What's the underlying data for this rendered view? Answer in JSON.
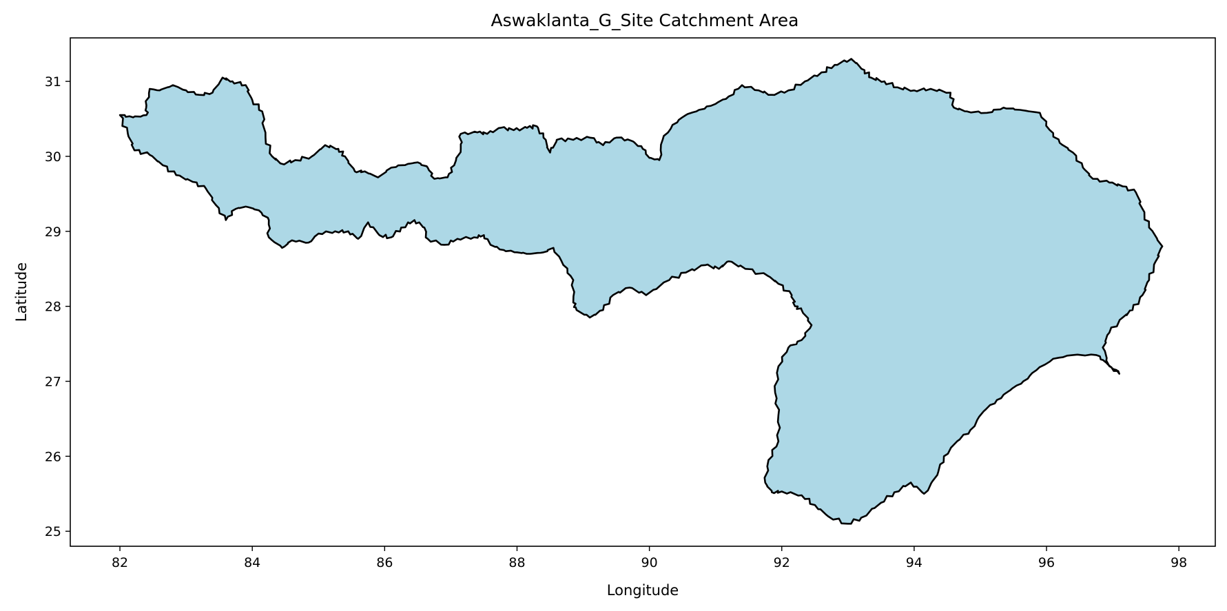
{
  "chart_data": {
    "type": "map",
    "title": "Aswaklanta_G_Site Catchment Area",
    "xlabel": "Longitude",
    "ylabel": "Latitude",
    "xlim": [
      81.25,
      98.55
    ],
    "ylim": [
      24.8,
      31.58
    ],
    "xticks": [
      82,
      84,
      86,
      88,
      90,
      92,
      94,
      96,
      98
    ],
    "yticks": [
      25,
      26,
      27,
      28,
      29,
      30,
      31
    ],
    "grid": false,
    "fill_color": "#add8e6",
    "edge_color": "#000000",
    "polygon": [
      [
        82.0,
        30.55
      ],
      [
        82.12,
        30.3
      ],
      [
        82.22,
        30.08
      ],
      [
        82.45,
        30.02
      ],
      [
        82.65,
        29.88
      ],
      [
        82.85,
        29.75
      ],
      [
        83.1,
        29.66
      ],
      [
        83.3,
        29.57
      ],
      [
        83.45,
        29.35
      ],
      [
        83.6,
        29.15
      ],
      [
        83.75,
        29.3
      ],
      [
        83.9,
        29.33
      ],
      [
        84.1,
        29.28
      ],
      [
        84.25,
        29.15
      ],
      [
        84.25,
        28.92
      ],
      [
        84.45,
        28.78
      ],
      [
        84.6,
        28.88
      ],
      [
        84.85,
        28.85
      ],
      [
        85.0,
        28.97
      ],
      [
        85.25,
        29.0
      ],
      [
        85.45,
        29.0
      ],
      [
        85.6,
        28.9
      ],
      [
        85.75,
        29.12
      ],
      [
        85.92,
        28.95
      ],
      [
        86.1,
        28.92
      ],
      [
        86.25,
        29.05
      ],
      [
        86.45,
        29.15
      ],
      [
        86.6,
        29.05
      ],
      [
        86.65,
        28.9
      ],
      [
        86.9,
        28.82
      ],
      [
        87.1,
        28.9
      ],
      [
        87.35,
        28.92
      ],
      [
        87.5,
        28.95
      ],
      [
        87.6,
        28.82
      ],
      [
        87.8,
        28.75
      ],
      [
        88.0,
        28.72
      ],
      [
        88.2,
        28.7
      ],
      [
        88.4,
        28.72
      ],
      [
        88.55,
        28.78
      ],
      [
        88.7,
        28.55
      ],
      [
        88.85,
        28.35
      ],
      [
        88.85,
        28.05
      ],
      [
        88.9,
        27.95
      ],
      [
        89.1,
        27.85
      ],
      [
        89.3,
        27.95
      ],
      [
        89.45,
        28.15
      ],
      [
        89.7,
        28.25
      ],
      [
        89.95,
        28.15
      ],
      [
        90.3,
        28.35
      ],
      [
        90.55,
        28.45
      ],
      [
        90.85,
        28.55
      ],
      [
        91.05,
        28.5
      ],
      [
        91.2,
        28.6
      ],
      [
        91.45,
        28.5
      ],
      [
        91.8,
        28.4
      ],
      [
        91.95,
        28.3
      ],
      [
        92.15,
        28.15
      ],
      [
        92.2,
        28.0
      ],
      [
        92.3,
        27.95
      ],
      [
        92.45,
        27.75
      ],
      [
        92.3,
        27.55
      ],
      [
        92.1,
        27.45
      ],
      [
        91.95,
        27.2
      ],
      [
        91.9,
        26.85
      ],
      [
        91.95,
        26.55
      ],
      [
        91.95,
        26.2
      ],
      [
        91.8,
        25.95
      ],
      [
        91.75,
        25.65
      ],
      [
        91.85,
        25.52
      ],
      [
        92.0,
        25.53
      ],
      [
        92.3,
        25.48
      ],
      [
        92.5,
        25.35
      ],
      [
        92.7,
        25.2
      ],
      [
        93.0,
        25.1
      ],
      [
        93.2,
        25.18
      ],
      [
        93.5,
        25.38
      ],
      [
        93.7,
        25.52
      ],
      [
        93.95,
        25.65
      ],
      [
        94.15,
        25.5
      ],
      [
        94.35,
        25.75
      ],
      [
        94.45,
        26.0
      ],
      [
        94.65,
        26.2
      ],
      [
        94.85,
        26.35
      ],
      [
        95.05,
        26.6
      ],
      [
        95.25,
        26.75
      ],
      [
        95.45,
        26.88
      ],
      [
        95.65,
        27.0
      ],
      [
        95.85,
        27.15
      ],
      [
        96.1,
        27.3
      ],
      [
        96.4,
        27.35
      ],
      [
        96.75,
        27.35
      ],
      [
        96.9,
        27.25
      ],
      [
        97.1,
        27.1
      ],
      [
        96.95,
        27.2
      ],
      [
        96.85,
        27.45
      ],
      [
        96.95,
        27.65
      ],
      [
        97.15,
        27.85
      ],
      [
        97.3,
        27.95
      ],
      [
        97.45,
        28.15
      ],
      [
        97.55,
        28.35
      ],
      [
        97.65,
        28.6
      ],
      [
        97.75,
        28.8
      ],
      [
        97.55,
        29.05
      ],
      [
        97.45,
        29.3
      ],
      [
        97.35,
        29.52
      ],
      [
        97.15,
        29.6
      ],
      [
        96.95,
        29.65
      ],
      [
        96.7,
        29.7
      ],
      [
        96.55,
        29.85
      ],
      [
        96.4,
        30.05
      ],
      [
        96.2,
        30.18
      ],
      [
        96.05,
        30.35
      ],
      [
        95.9,
        30.58
      ],
      [
        95.6,
        30.62
      ],
      [
        95.35,
        30.65
      ],
      [
        95.1,
        30.58
      ],
      [
        94.8,
        30.6
      ],
      [
        94.6,
        30.65
      ],
      [
        94.55,
        30.85
      ],
      [
        94.25,
        30.9
      ],
      [
        94.0,
        30.88
      ],
      [
        93.75,
        30.92
      ],
      [
        93.55,
        31.0
      ],
      [
        93.35,
        31.05
      ],
      [
        93.25,
        31.15
      ],
      [
        93.05,
        31.3
      ],
      [
        92.8,
        31.22
      ],
      [
        92.6,
        31.12
      ],
      [
        92.35,
        31.0
      ],
      [
        92.1,
        30.88
      ],
      [
        91.85,
        30.82
      ],
      [
        91.65,
        30.88
      ],
      [
        91.4,
        30.95
      ],
      [
        91.2,
        30.8
      ],
      [
        91.0,
        30.7
      ],
      [
        90.75,
        30.62
      ],
      [
        90.55,
        30.55
      ],
      [
        90.35,
        30.42
      ],
      [
        90.2,
        30.22
      ],
      [
        90.15,
        29.95
      ],
      [
        90.0,
        29.98
      ],
      [
        89.9,
        30.1
      ],
      [
        89.75,
        30.2
      ],
      [
        89.5,
        30.25
      ],
      [
        89.3,
        30.15
      ],
      [
        89.1,
        30.25
      ],
      [
        88.85,
        30.22
      ],
      [
        88.6,
        30.22
      ],
      [
        88.5,
        30.05
      ],
      [
        88.4,
        30.25
      ],
      [
        88.3,
        30.4
      ],
      [
        88.15,
        30.38
      ],
      [
        87.95,
        30.35
      ],
      [
        87.75,
        30.38
      ],
      [
        87.55,
        30.3
      ],
      [
        87.4,
        30.32
      ],
      [
        87.15,
        30.3
      ],
      [
        87.15,
        30.1
      ],
      [
        87.05,
        29.88
      ],
      [
        86.95,
        29.72
      ],
      [
        86.75,
        29.7
      ],
      [
        86.65,
        29.85
      ],
      [
        86.5,
        29.92
      ],
      [
        86.35,
        29.9
      ],
      [
        86.1,
        29.85
      ],
      [
        85.9,
        29.72
      ],
      [
        85.7,
        29.8
      ],
      [
        85.55,
        29.8
      ],
      [
        85.4,
        30.0
      ],
      [
        85.3,
        30.1
      ],
      [
        85.1,
        30.15
      ],
      [
        84.9,
        30.0
      ],
      [
        84.65,
        29.95
      ],
      [
        84.45,
        29.9
      ],
      [
        84.3,
        30.0
      ],
      [
        84.2,
        30.25
      ],
      [
        84.15,
        30.6
      ],
      [
        84.0,
        30.75
      ],
      [
        83.9,
        30.95
      ],
      [
        83.7,
        31.0
      ],
      [
        83.55,
        31.05
      ],
      [
        83.4,
        30.85
      ],
      [
        83.2,
        30.82
      ],
      [
        83.0,
        30.88
      ],
      [
        82.8,
        30.95
      ],
      [
        82.6,
        30.88
      ],
      [
        82.45,
        30.9
      ],
      [
        82.4,
        30.68
      ],
      [
        82.4,
        30.55
      ],
      [
        82.2,
        30.52
      ]
    ]
  }
}
